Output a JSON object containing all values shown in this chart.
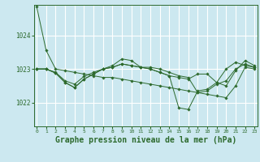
{
  "bg_color": "#cce8f0",
  "grid_color": "#ffffff",
  "line_color": "#2d6a2d",
  "xlabel": "Graphe pression niveau de la mer (hPa)",
  "xlabel_fontsize": 7,
  "xtick_labels": [
    "0",
    "1",
    "2",
    "3",
    "4",
    "5",
    "6",
    "7",
    "8",
    "9",
    "10",
    "11",
    "12",
    "13",
    "14",
    "15",
    "16",
    "17",
    "18",
    "19",
    "20",
    "21",
    "22",
    "23"
  ],
  "ytick_values": [
    1022,
    1023,
    1024
  ],
  "ylim": [
    1021.3,
    1024.9
  ],
  "xlim": [
    -0.3,
    23.3
  ],
  "series": [
    [
      1024.85,
      1023.55,
      1023.0,
      1022.95,
      1022.9,
      1022.85,
      1022.8,
      1022.75,
      1022.75,
      1022.7,
      1022.65,
      1022.6,
      1022.55,
      1022.5,
      1022.45,
      1022.4,
      1022.35,
      1022.3,
      1022.25,
      1022.2,
      1022.15,
      1022.5,
      1023.05,
      1023.0
    ],
    [
      1023.0,
      1023.0,
      1022.9,
      1022.65,
      1022.55,
      1022.78,
      1022.9,
      1023.0,
      1023.1,
      1023.3,
      1023.25,
      1023.05,
      1023.05,
      1023.0,
      1022.9,
      1022.8,
      1022.75,
      1022.3,
      1022.35,
      1022.55,
      1022.65,
      1023.0,
      1023.15,
      1023.05
    ],
    [
      1023.0,
      1023.0,
      1022.88,
      1022.6,
      1022.45,
      1022.7,
      1022.85,
      1023.0,
      1023.05,
      1023.15,
      1023.1,
      1023.05,
      1023.0,
      1022.9,
      1022.8,
      1021.85,
      1021.8,
      1022.35,
      1022.4,
      1022.6,
      1023.0,
      1023.2,
      1023.1,
      1023.05
    ],
    [
      1023.0,
      1023.0,
      1022.88,
      1022.6,
      1022.45,
      1022.7,
      1022.85,
      1023.0,
      1023.05,
      1023.15,
      1023.1,
      1023.05,
      1023.0,
      1022.9,
      1022.8,
      1022.75,
      1022.7,
      1022.85,
      1022.85,
      1022.6,
      1022.5,
      1022.95,
      1023.25,
      1023.1
    ]
  ]
}
